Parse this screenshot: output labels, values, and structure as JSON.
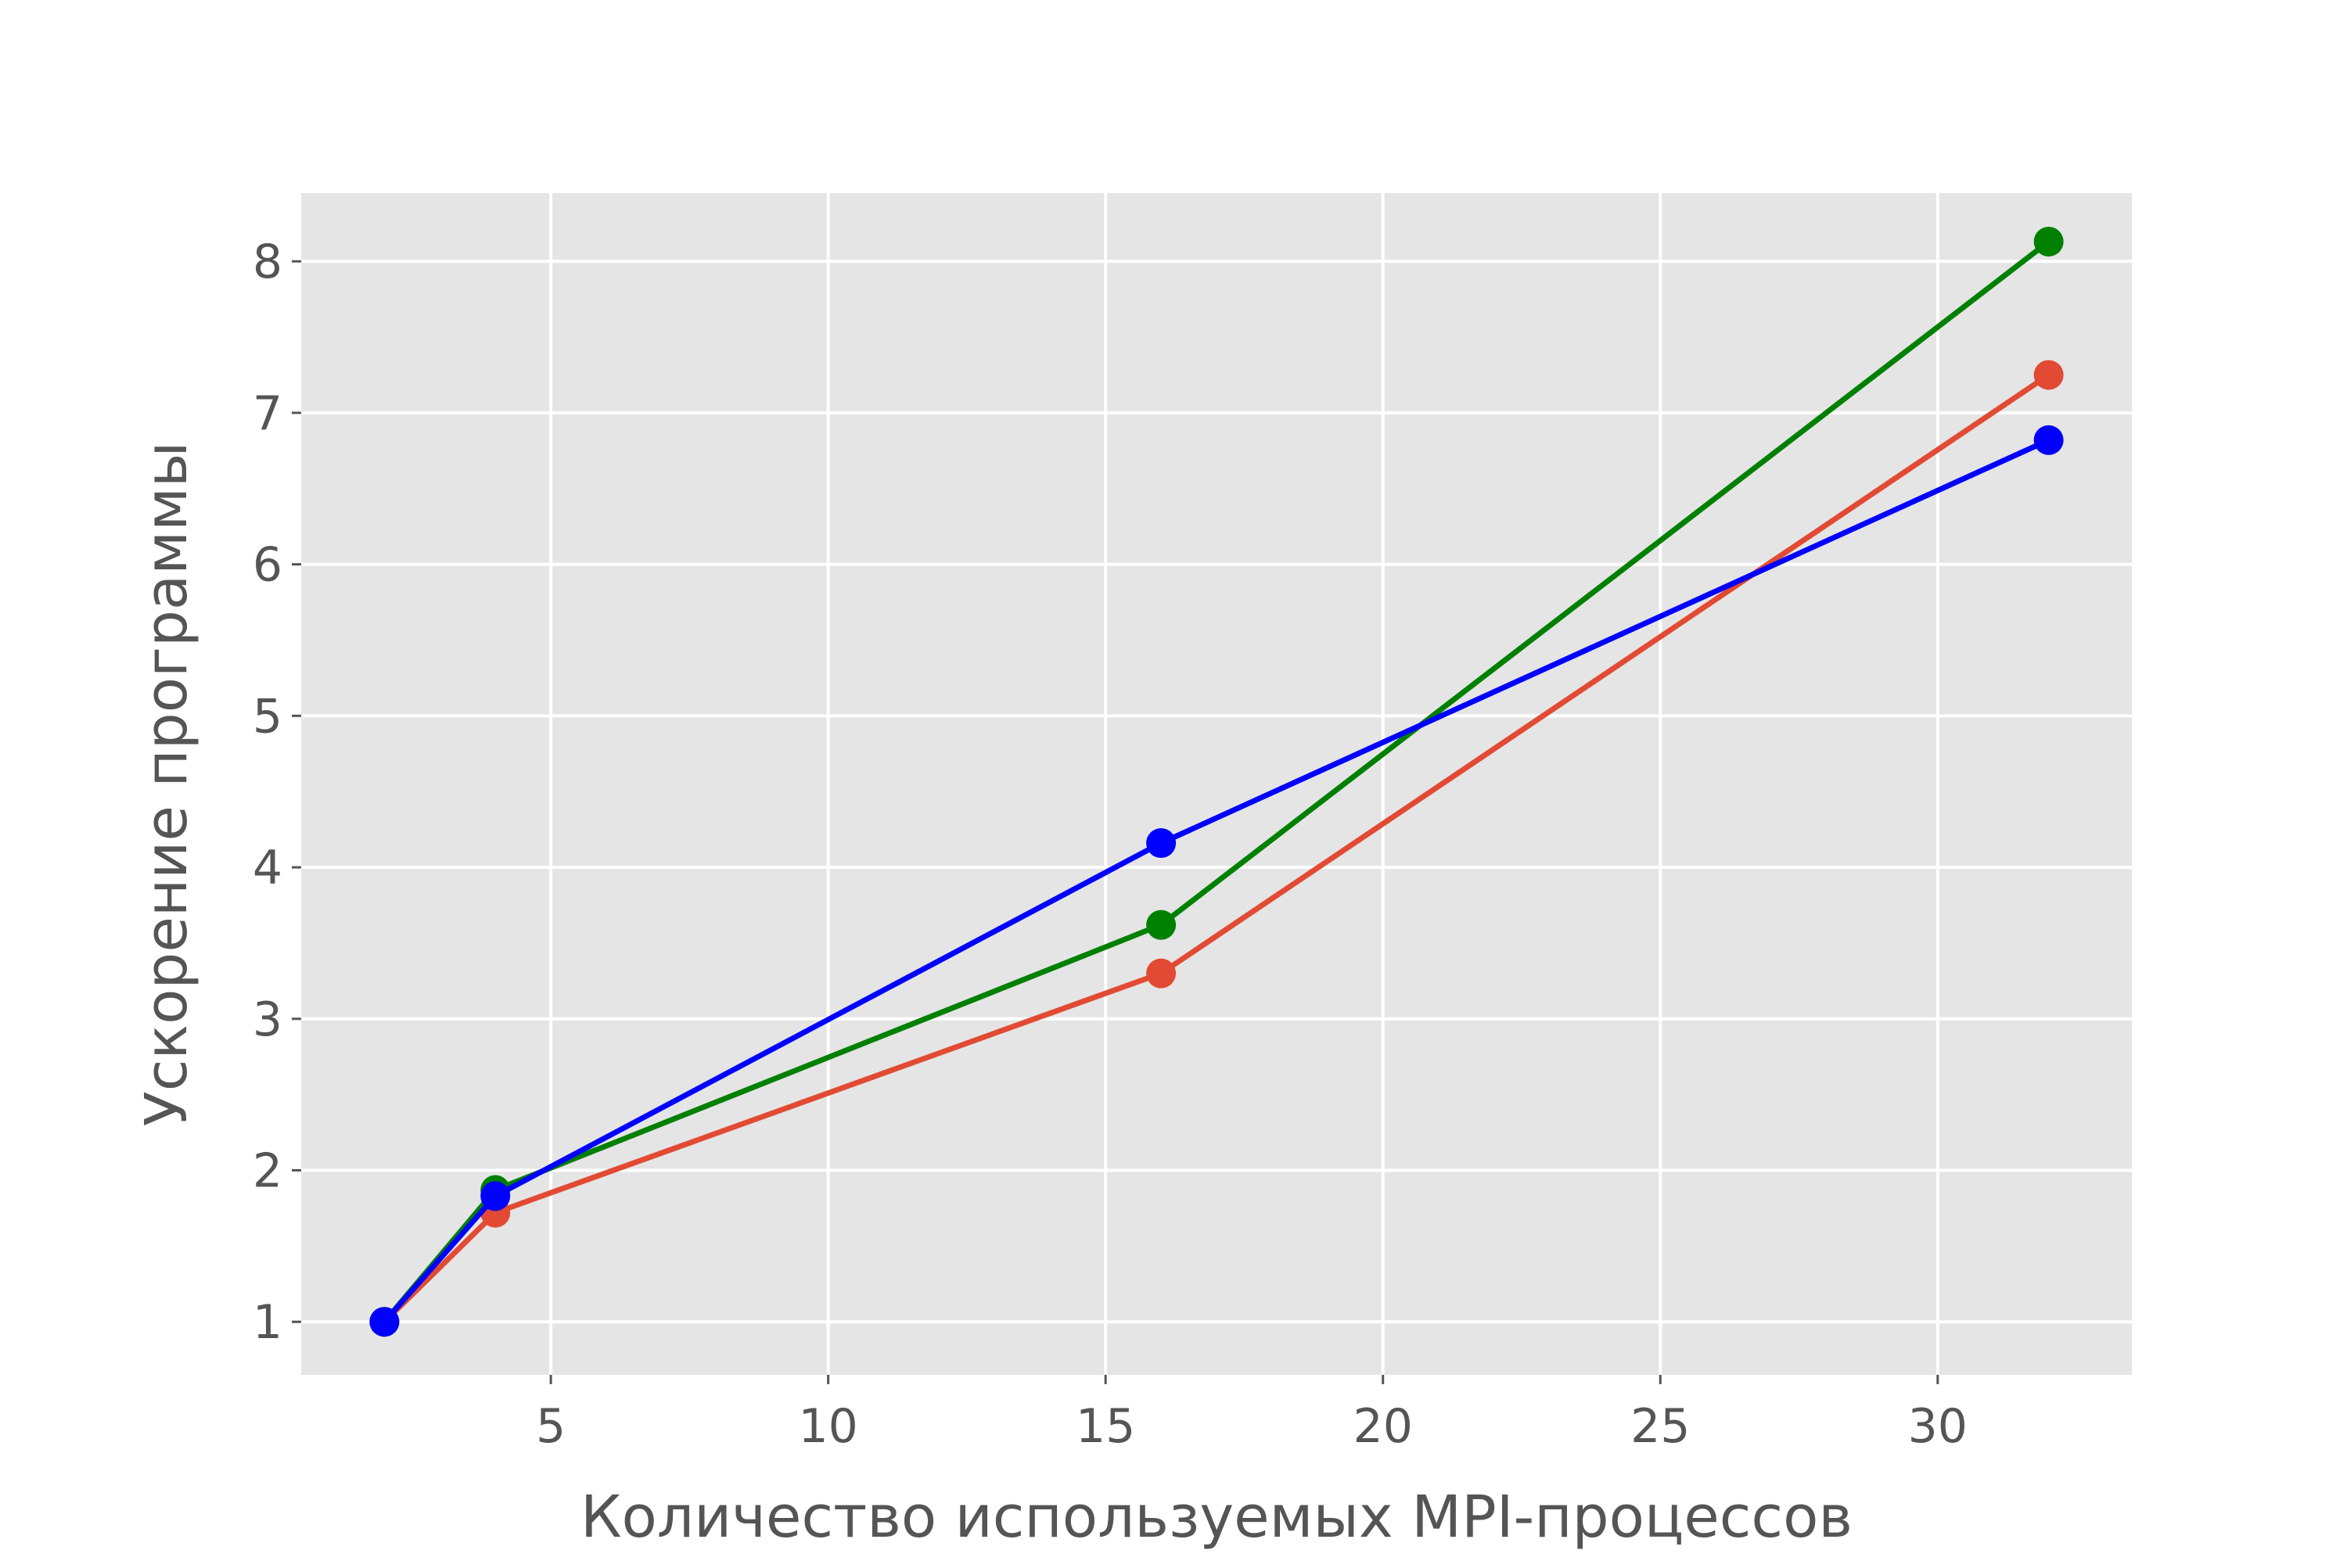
{
  "chart_data": {
    "type": "line",
    "title": "",
    "xlabel": "Количество используемых MPI-процессов",
    "ylabel": "Ускорение программы",
    "xlim": [
      0.5,
      33.5
    ],
    "ylim": [
      0.65,
      8.45
    ],
    "xticks": [
      5,
      10,
      15,
      20,
      25,
      30
    ],
    "yticks": [
      1,
      2,
      3,
      4,
      5,
      6,
      7,
      8
    ],
    "grid": true,
    "background": "#e5e5e5",
    "series": [
      {
        "color": "#e24a33",
        "marker": "circle",
        "x": [
          2,
          4,
          16,
          32
        ],
        "y": [
          1.0,
          1.72,
          3.3,
          7.25
        ]
      },
      {
        "color": "#008000",
        "marker": "circle",
        "x": [
          2,
          4,
          16,
          32
        ],
        "y": [
          1.0,
          1.87,
          3.62,
          8.13
        ]
      },
      {
        "color": "#0000ff",
        "marker": "circle",
        "x": [
          2,
          4,
          16,
          32
        ],
        "y": [
          1.0,
          1.83,
          4.16,
          6.82
        ]
      }
    ]
  }
}
